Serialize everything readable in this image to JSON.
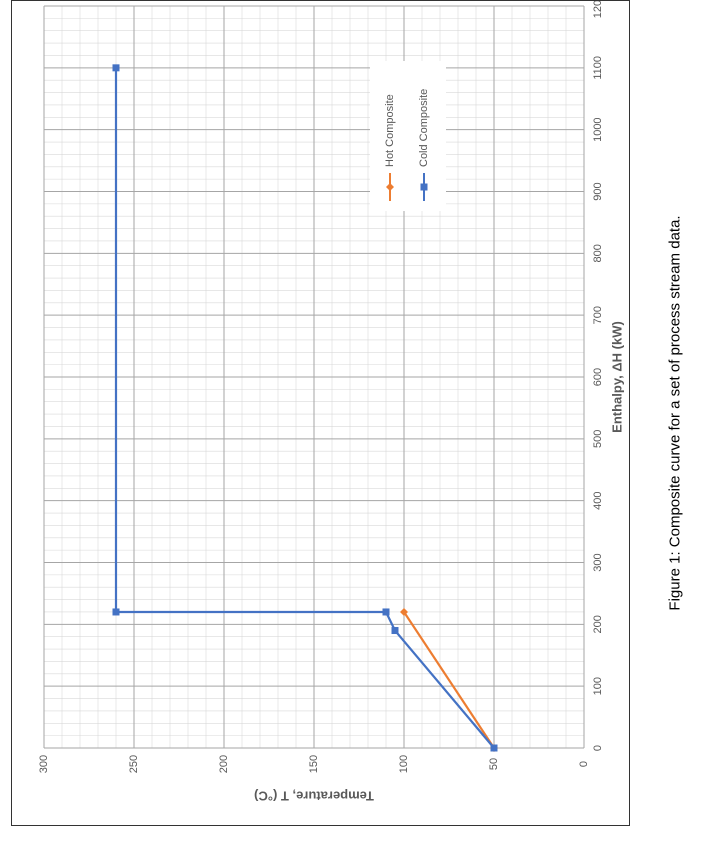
{
  "caption": "Figure 1: Composite curve for a set of process stream data.",
  "chart_data": {
    "type": "line",
    "xlabel": "Enthalpy, ΔH (kW)",
    "ylabel": "Temperature, T (°C)",
    "xlim": [
      0,
      1200
    ],
    "ylim": [
      0,
      300
    ],
    "x_ticks": [
      "0",
      "100",
      "200",
      "300",
      "400",
      "500",
      "600",
      "700",
      "800",
      "900",
      "1000",
      "1100",
      "1200"
    ],
    "y_ticks": [
      "0",
      "50",
      "100",
      "150",
      "200",
      "250",
      "300"
    ],
    "grid": true,
    "minor_grid": true,
    "orientation": "rotated-90-ccw",
    "legend_position": "top-right",
    "series": [
      {
        "name": "Hot Composite",
        "color": "#ED7D31",
        "marker": "diamond",
        "points": [
          [
            0,
            50
          ],
          [
            220,
            100
          ]
        ]
      },
      {
        "name": "Cold Composite",
        "color": "#4472C4",
        "marker": "square",
        "points": [
          [
            0,
            50
          ],
          [
            190,
            105
          ],
          [
            220,
            110
          ],
          [
            220,
            260
          ],
          [
            1100,
            260
          ]
        ]
      }
    ]
  }
}
